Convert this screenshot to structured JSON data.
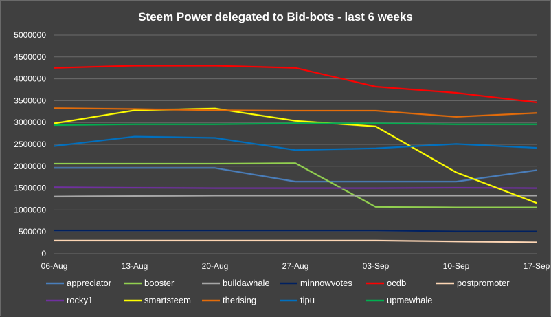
{
  "chart_data": {
    "type": "line",
    "title": "Steem Power delegated to Bid-bots - last 6 weeks",
    "xlabel": "",
    "ylabel": "",
    "categories": [
      "06-Aug",
      "13-Aug",
      "20-Aug",
      "27-Aug",
      "03-Sep",
      "10-Sep",
      "17-Sep"
    ],
    "ylim": [
      0,
      5000000
    ],
    "yticks": [
      0,
      500000,
      1000000,
      1500000,
      2000000,
      2500000,
      3000000,
      3500000,
      4000000,
      4500000,
      5000000
    ],
    "grid": true,
    "legend_position": "bottom",
    "series": [
      {
        "name": "appreciator",
        "color": "#4a7ebb",
        "values": [
          1960000,
          1960000,
          1960000,
          1650000,
          1650000,
          1650000,
          1910000
        ]
      },
      {
        "name": "booster",
        "color": "#92d050",
        "values": [
          2060000,
          2060000,
          2060000,
          2070000,
          1070000,
          1060000,
          1060000
        ]
      },
      {
        "name": "buildawhale",
        "color": "#a6a6a6",
        "values": [
          1310000,
          1320000,
          1330000,
          1330000,
          1330000,
          1330000,
          1330000
        ]
      },
      {
        "name": "minnowvotes",
        "color": "#002060",
        "values": [
          530000,
          530000,
          530000,
          530000,
          530000,
          510000,
          510000
        ]
      },
      {
        "name": "ocdb",
        "color": "#ff0000",
        "values": [
          4250000,
          4300000,
          4300000,
          4250000,
          3820000,
          3680000,
          3460000
        ]
      },
      {
        "name": "postpromoter",
        "color": "#fcd5b4",
        "values": [
          300000,
          300000,
          300000,
          300000,
          300000,
          280000,
          260000
        ]
      },
      {
        "name": "rocky1",
        "color": "#7030a0",
        "values": [
          1520000,
          1510000,
          1500000,
          1500000,
          1500000,
          1510000,
          1500000
        ]
      },
      {
        "name": "smartsteem",
        "color": "#ffff00",
        "values": [
          2980000,
          3280000,
          3320000,
          3040000,
          2910000,
          1860000,
          1160000
        ]
      },
      {
        "name": "therising",
        "color": "#e46c0a",
        "values": [
          3330000,
          3310000,
          3280000,
          3270000,
          3270000,
          3130000,
          3220000
        ]
      },
      {
        "name": "tipu",
        "color": "#0070c0",
        "values": [
          2460000,
          2680000,
          2650000,
          2370000,
          2410000,
          2510000,
          2420000
        ]
      },
      {
        "name": "upmewhale",
        "color": "#00b050",
        "values": [
          2940000,
          2960000,
          2960000,
          2980000,
          2980000,
          2960000,
          2960000
        ]
      }
    ]
  }
}
